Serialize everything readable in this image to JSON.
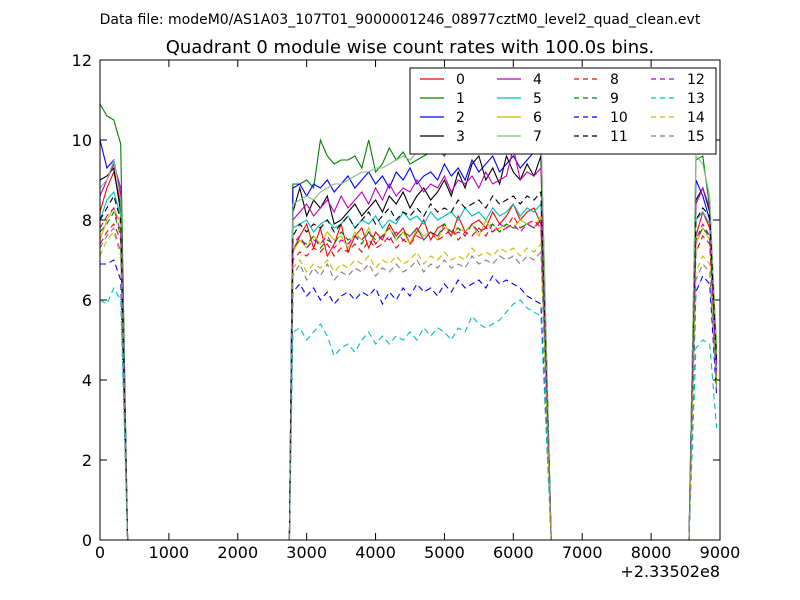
{
  "chart_data": {
    "type": "line",
    "suptitle": "Data file: modeM0/AS1A03_107T01_9000001246_08977cztM0_level2_quad_clean.evt",
    "title": "Quadrant 0 module wise count rates with 100.0s bins.",
    "xlabel": "",
    "ylabel": "",
    "x_offset_label": "+2.33502e8",
    "xlim": [
      0,
      9000
    ],
    "ylim": [
      0,
      12
    ],
    "xticks": [
      0,
      1000,
      2000,
      3000,
      4000,
      5000,
      6000,
      7000,
      8000,
      9000
    ],
    "yticks": [
      0,
      2,
      4,
      6,
      8,
      10,
      12
    ],
    "grid": false,
    "legend_position": "top-right",
    "legend_columns": 4,
    "x": [
      0,
      100,
      200,
      300,
      400,
      450,
      2750,
      2800,
      2900,
      3000,
      3100,
      3200,
      3300,
      3400,
      3500,
      3600,
      3700,
      3800,
      3900,
      4000,
      4100,
      4200,
      4300,
      4400,
      4500,
      4600,
      4700,
      4800,
      4900,
      5000,
      5100,
      5200,
      5300,
      5400,
      5500,
      5600,
      5700,
      5800,
      5900,
      6000,
      6100,
      6200,
      6300,
      6400,
      6550,
      8550,
      8650,
      8750,
      8850,
      8950
    ],
    "series": [
      {
        "name": "0",
        "color": "#ff0000",
        "dash": "solid",
        "values": [
          8.2,
          8.8,
          9.2,
          8.4,
          0,
          0,
          0,
          7.2,
          7.6,
          7.9,
          7.3,
          7.8,
          7.1,
          7.4,
          7.9,
          7.2,
          7.6,
          7.8,
          7.3,
          7.7,
          7.5,
          7.9,
          7.6,
          7.8,
          7.4,
          7.7,
          8.0,
          7.5,
          7.8,
          7.9,
          7.6,
          8.1,
          7.7,
          7.9,
          8.0,
          7.8,
          8.2,
          7.9,
          8.1,
          8.4,
          8.0,
          8.2,
          8.3,
          7.9,
          0,
          0,
          7.6,
          8.2,
          7.8,
          4.6
        ]
      },
      {
        "name": "1",
        "color": "#008000",
        "dash": "solid",
        "values": [
          10.9,
          10.6,
          10.5,
          9.9,
          0,
          0,
          0,
          8.9,
          8.9,
          9.0,
          8.8,
          10.0,
          9.6,
          9.4,
          9.5,
          9.5,
          9.6,
          9.3,
          10.0,
          9.2,
          9.4,
          9.8,
          9.5,
          9.7,
          9.4,
          9.5,
          9.6,
          9.7,
          9.8,
          9.6,
          9.9,
          9.7,
          9.8,
          10.0,
          9.7,
          9.9,
          10.1,
          9.8,
          10.2,
          10.4,
          10.1,
          10.3,
          10.4,
          10.2,
          0,
          0,
          9.5,
          9.6,
          8.3,
          4.8
        ]
      },
      {
        "name": "2",
        "color": "#0000ff",
        "dash": "solid",
        "values": [
          10.0,
          9.3,
          9.5,
          8.6,
          0,
          0,
          0,
          8.8,
          8.9,
          8.6,
          8.9,
          8.8,
          9.0,
          8.7,
          8.9,
          9.1,
          8.8,
          9.0,
          9.2,
          8.9,
          9.1,
          8.8,
          9.2,
          9.0,
          9.3,
          8.9,
          9.1,
          9.2,
          9.0,
          9.4,
          9.1,
          9.3,
          9.0,
          9.5,
          9.2,
          9.4,
          9.6,
          9.2,
          9.4,
          9.6,
          9.3,
          9.5,
          9.7,
          9.8,
          0,
          0,
          9.0,
          8.6,
          8.0,
          4.5
        ]
      },
      {
        "name": "3",
        "color": "#000000",
        "dash": "solid",
        "values": [
          9.0,
          9.1,
          9.3,
          8.2,
          0,
          0,
          0,
          8.2,
          8.8,
          8.1,
          8.5,
          8.3,
          8.6,
          7.9,
          8.0,
          8.2,
          8.4,
          8.1,
          8.3,
          8.5,
          8.2,
          8.6,
          8.4,
          8.7,
          8.3,
          8.6,
          8.8,
          8.5,
          8.7,
          9.0,
          8.6,
          9.2,
          8.8,
          9.4,
          9.6,
          9.0,
          9.3,
          8.9,
          9.6,
          9.2,
          9.0,
          9.4,
          9.1,
          9.6,
          0,
          0,
          8.5,
          8.8,
          8.2,
          4.4
        ]
      },
      {
        "name": "4",
        "color": "#bf00bf",
        "dash": "solid",
        "values": [
          8.6,
          9.0,
          9.4,
          8.8,
          0,
          0,
          0,
          8.0,
          8.2,
          8.4,
          8.1,
          8.3,
          8.5,
          8.2,
          8.6,
          8.3,
          8.5,
          8.7,
          8.4,
          8.8,
          8.5,
          8.9,
          8.6,
          8.8,
          8.7,
          9.0,
          8.7,
          8.9,
          8.8,
          9.1,
          8.7,
          9.0,
          8.9,
          9.1,
          8.8,
          9.2,
          8.9,
          9.0,
          9.1,
          9.8,
          9.0,
          9.2,
          9.1,
          9.3,
          0,
          0,
          8.4,
          8.8,
          8.3,
          4.3
        ]
      },
      {
        "name": "5",
        "color": "#00bfbf",
        "dash": "solid",
        "values": [
          8.0,
          8.5,
          8.7,
          8.1,
          0,
          0,
          0,
          7.8,
          7.9,
          8.0,
          7.7,
          7.9,
          8.0,
          7.8,
          7.9,
          8.1,
          7.8,
          8.0,
          7.9,
          8.1,
          7.8,
          8.0,
          7.9,
          8.2,
          8.0,
          8.1,
          7.9,
          8.2,
          8.0,
          8.1,
          8.2,
          8.0,
          8.3,
          8.1,
          8.2,
          8.0,
          8.3,
          8.1,
          8.2,
          8.4,
          8.1,
          8.3,
          8.2,
          8.4,
          0,
          0,
          8.0,
          8.2,
          7.9,
          4.2
        ]
      },
      {
        "name": "6",
        "color": "#bfbf00",
        "dash": "solid",
        "values": [
          7.5,
          8.0,
          8.3,
          7.9,
          0,
          0,
          0,
          7.2,
          7.5,
          7.3,
          7.6,
          7.4,
          7.7,
          7.5,
          7.6,
          7.3,
          7.7,
          7.5,
          7.8,
          7.4,
          7.6,
          7.8,
          7.5,
          7.7,
          7.4,
          7.8,
          7.6,
          7.7,
          7.5,
          7.9,
          7.6,
          7.8,
          7.7,
          7.9,
          7.6,
          8.0,
          7.7,
          7.8,
          7.9,
          7.8,
          8.0,
          7.9,
          7.8,
          8.1,
          0,
          0,
          7.4,
          7.8,
          7.5,
          4.0
        ]
      },
      {
        "name": "7",
        "color": "#80c080",
        "dash": "solid",
        "values": [
          8.8,
          9.0,
          9.5,
          8.5,
          0,
          0,
          0,
          8.4,
          8.5,
          8.6,
          8.5,
          8.7,
          8.8,
          8.9,
          8.9,
          9.0,
          9.1,
          9.2,
          9.2,
          9.3,
          9.3,
          9.4,
          9.5,
          9.6,
          9.5,
          9.7,
          9.8,
          9.7,
          10.4,
          10.2,
          9.9,
          9.8,
          10.0,
          9.9,
          9.8,
          10.0,
          9.9,
          10.1,
          10.2,
          10.3,
          10.4,
          10.2,
          10.4,
          10.3,
          0,
          0,
          9.6,
          9.4,
          8.6,
          4.6
        ]
      },
      {
        "name": "8",
        "color": "#ff0000",
        "dash": "6,4",
        "values": [
          7.4,
          7.7,
          7.9,
          7.5,
          0,
          0,
          0,
          7.0,
          7.2,
          7.1,
          7.3,
          7.2,
          7.4,
          7.1,
          7.3,
          7.2,
          7.4,
          7.2,
          7.5,
          7.3,
          7.4,
          7.6,
          7.3,
          7.5,
          7.4,
          7.6,
          7.5,
          7.7,
          7.5,
          7.6,
          7.8,
          7.5,
          7.7,
          7.6,
          7.8,
          7.6,
          7.9,
          7.7,
          7.8,
          8.1,
          7.8,
          7.9,
          8.0,
          7.8,
          0,
          0,
          7.2,
          7.6,
          7.4,
          4.1
        ]
      },
      {
        "name": "9",
        "color": "#008000",
        "dash": "6,4",
        "values": [
          7.7,
          7.9,
          8.2,
          7.6,
          0,
          0,
          0,
          7.3,
          7.5,
          7.4,
          7.6,
          7.3,
          7.5,
          7.4,
          7.7,
          7.5,
          7.6,
          7.4,
          7.7,
          7.5,
          7.6,
          7.8,
          7.5,
          7.7,
          7.6,
          7.8,
          7.5,
          7.7,
          7.6,
          7.9,
          7.7,
          7.8,
          7.6,
          7.9,
          7.7,
          7.8,
          7.9,
          7.7,
          7.9,
          7.8,
          7.8,
          7.9,
          7.8,
          8.0,
          0,
          0,
          7.5,
          7.8,
          7.6,
          4.0
        ]
      },
      {
        "name": "10",
        "color": "#0000ff",
        "dash": "6,4",
        "values": [
          6.9,
          6.9,
          7.0,
          6.5,
          0,
          0,
          0,
          6.2,
          6.4,
          6.1,
          6.3,
          6.0,
          6.2,
          5.9,
          6.1,
          6.2,
          6.0,
          6.2,
          6.1,
          6.3,
          5.9,
          6.2,
          6.0,
          6.3,
          6.1,
          6.4,
          6.2,
          6.3,
          6.1,
          6.4,
          6.2,
          6.5,
          6.3,
          6.4,
          6.5,
          6.3,
          6.6,
          6.4,
          6.5,
          6.4,
          6.3,
          6.1,
          6.0,
          5.9,
          0,
          0,
          6.2,
          6.6,
          6.4,
          3.6
        ]
      },
      {
        "name": "11",
        "color": "#000000",
        "dash": "6,4",
        "values": [
          8.0,
          8.3,
          8.6,
          8.0,
          0,
          0,
          0,
          7.6,
          7.9,
          7.7,
          7.9,
          7.8,
          8.0,
          7.7,
          7.9,
          8.1,
          7.8,
          8.0,
          8.2,
          7.9,
          8.1,
          8.3,
          8.0,
          8.2,
          8.1,
          8.3,
          8.1,
          8.4,
          8.2,
          8.3,
          8.2,
          8.5,
          8.3,
          8.4,
          8.5,
          8.3,
          8.6,
          8.4,
          8.5,
          8.6,
          8.4,
          8.6,
          8.5,
          8.7,
          0,
          0,
          8.0,
          8.3,
          8.1,
          4.4
        ]
      },
      {
        "name": "12",
        "color": "#bf00bf",
        "dash": "6,4",
        "values": [
          7.8,
          8.1,
          8.3,
          7.7,
          0,
          0,
          0,
          7.4,
          7.6,
          7.3,
          7.5,
          7.4,
          7.6,
          7.3,
          7.5,
          7.4,
          7.6,
          7.5,
          7.7,
          7.4,
          7.6,
          7.5,
          7.7,
          7.5,
          7.6,
          7.8,
          7.5,
          7.7,
          7.6,
          7.8,
          7.6,
          7.7,
          7.6,
          7.9,
          7.7,
          7.8,
          7.7,
          7.9,
          7.8,
          7.9,
          7.7,
          7.9,
          7.8,
          8.0,
          0,
          0,
          7.5,
          7.9,
          7.6,
          4.2
        ]
      },
      {
        "name": "13",
        "color": "#00bfbf",
        "dash": "6,4",
        "values": [
          6.0,
          5.9,
          6.3,
          6.0,
          0,
          0,
          0,
          5.2,
          5.3,
          5.0,
          5.2,
          5.4,
          5.1,
          4.6,
          4.8,
          4.9,
          4.7,
          5.0,
          5.2,
          4.9,
          5.1,
          4.9,
          5.1,
          5.0,
          5.2,
          5.0,
          5.3,
          5.1,
          5.3,
          5.2,
          5.0,
          5.3,
          5.2,
          5.6,
          5.4,
          5.3,
          5.4,
          5.5,
          5.7,
          5.9,
          6.0,
          5.8,
          5.7,
          5.6,
          0,
          0,
          4.8,
          5.0,
          4.9,
          2.8
        ]
      },
      {
        "name": "14",
        "color": "#bfbf00",
        "dash": "6,4",
        "values": [
          7.1,
          7.5,
          7.7,
          7.1,
          0,
          0,
          0,
          6.8,
          7.0,
          6.7,
          6.9,
          6.8,
          7.0,
          6.7,
          6.9,
          6.8,
          7.0,
          6.9,
          7.1,
          6.8,
          7.0,
          6.9,
          7.1,
          6.9,
          7.0,
          7.2,
          6.9,
          7.1,
          7.0,
          7.2,
          7.0,
          7.1,
          7.0,
          7.3,
          7.1,
          7.2,
          7.1,
          7.3,
          7.2,
          7.3,
          7.1,
          7.3,
          7.2,
          7.4,
          0,
          0,
          6.7,
          7.1,
          6.9,
          3.9
        ]
      },
      {
        "name": "15",
        "color": "#808080",
        "dash": "6,4",
        "values": [
          7.3,
          7.6,
          7.8,
          7.2,
          0,
          0,
          0,
          6.6,
          6.9,
          6.5,
          6.8,
          6.6,
          6.9,
          6.5,
          6.7,
          6.6,
          6.8,
          6.7,
          6.9,
          6.6,
          6.8,
          6.7,
          6.9,
          6.7,
          6.8,
          7.0,
          6.7,
          6.9,
          6.8,
          7.0,
          6.8,
          6.9,
          6.8,
          7.1,
          6.9,
          7.0,
          6.9,
          7.1,
          7.0,
          7.1,
          6.9,
          7.1,
          7.0,
          7.2,
          0,
          0,
          6.5,
          6.9,
          6.7,
          3.8
        ]
      }
    ]
  }
}
